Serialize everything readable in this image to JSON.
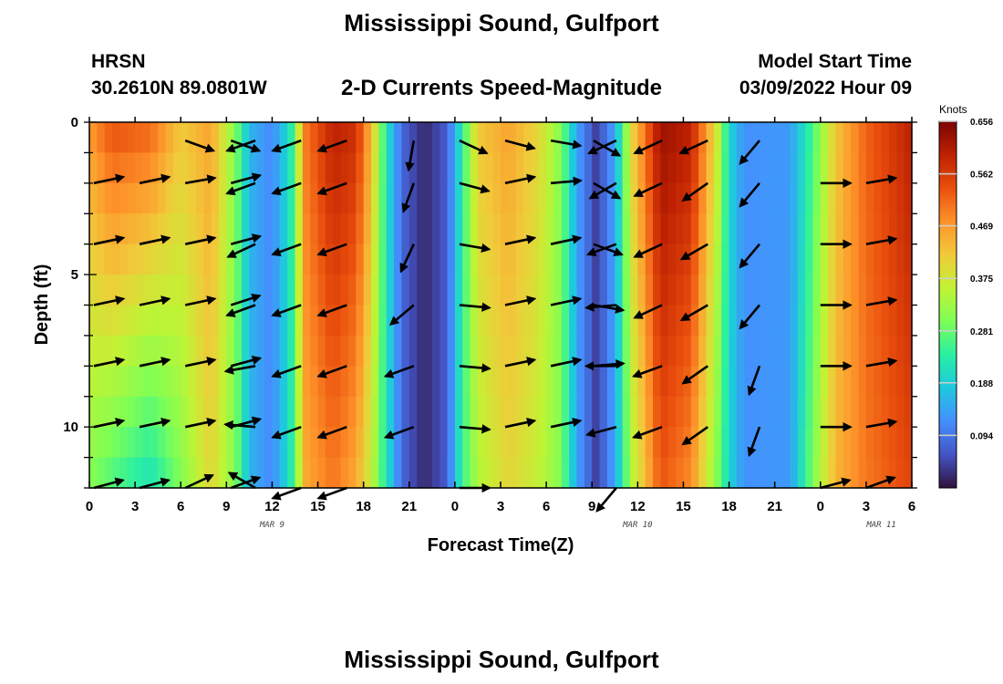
{
  "header": {
    "title": "Mississippi Sound, Gulfport",
    "station": "HRSN",
    "coords": "30.2610N  89.0801W",
    "subtitle": "2-D Currents Speed-Magnitude",
    "model_start_label": "Model Start Time",
    "model_start_value": "03/09/2022 Hour 09"
  },
  "footer": {
    "title": "Mississippi Sound, Gulfport"
  },
  "colors": {
    "scale": [
      "#30123b",
      "#4454c4",
      "#4490fe",
      "#1fc8de",
      "#29efa2",
      "#7dff56",
      "#c1f334",
      "#f1ca3a",
      "#fe922a",
      "#ea4f0d",
      "#be2102",
      "#7a0403"
    ]
  },
  "chart_data": {
    "type": "heatmap",
    "title": "2-D Currents Speed-Magnitude",
    "xlabel": "Forecast Time(Z)",
    "ylabel": "Depth (ft)",
    "x_range_hours": [
      0,
      54
    ],
    "y_range_ft": [
      0,
      12
    ],
    "xticks": [
      "0",
      "3",
      "6",
      "9",
      "12",
      "15",
      "18",
      "21",
      "0",
      "3",
      "6",
      "9",
      "12",
      "15",
      "18",
      "21",
      "0",
      "3",
      "6"
    ],
    "yticks": [
      "0",
      "5",
      "10"
    ],
    "ytick_values": [
      0,
      5,
      10
    ],
    "date_labels": [
      {
        "label": "MAR 9",
        "hour": 12
      },
      {
        "label": "MAR 10",
        "hour": 36
      },
      {
        "label": "MAR 11",
        "hour": 52
      }
    ],
    "colorbar": {
      "title": "Knots",
      "min": 0,
      "max": 0.656,
      "ticks": [
        "0.656",
        "0.562",
        "0.469",
        "0.375",
        "0.281",
        "0.188",
        "0.094"
      ],
      "tick_values": [
        0.656,
        0.562,
        0.469,
        0.375,
        0.281,
        0.188,
        0.094
      ]
    },
    "speed_keyframes": [
      {
        "hour": 0,
        "surface": 0.47,
        "bottom": 0.3
      },
      {
        "hour": 1.5,
        "surface": 0.54,
        "bottom": 0.26
      },
      {
        "hour": 4,
        "surface": 0.52,
        "bottom": 0.21
      },
      {
        "hour": 6,
        "surface": 0.42,
        "bottom": 0.3
      },
      {
        "hour": 8,
        "surface": 0.46,
        "bottom": 0.4
      },
      {
        "hour": 9.6,
        "surface": 0.3,
        "bottom": 0.3
      },
      {
        "hour": 10.5,
        "surface": 0.16,
        "bottom": 0.16
      },
      {
        "hour": 12,
        "surface": 0.11,
        "bottom": 0.11
      },
      {
        "hour": 13.2,
        "surface": 0.22,
        "bottom": 0.22
      },
      {
        "hour": 14.2,
        "surface": 0.5,
        "bottom": 0.45
      },
      {
        "hour": 16,
        "surface": 0.6,
        "bottom": 0.5
      },
      {
        "hour": 17.5,
        "surface": 0.58,
        "bottom": 0.45
      },
      {
        "hour": 18.5,
        "surface": 0.44,
        "bottom": 0.36
      },
      {
        "hour": 19.5,
        "surface": 0.22,
        "bottom": 0.22
      },
      {
        "hour": 20.5,
        "surface": 0.08,
        "bottom": 0.08
      },
      {
        "hour": 22,
        "surface": 0.02,
        "bottom": 0.02
      },
      {
        "hour": 23.5,
        "surface": 0.07,
        "bottom": 0.07
      },
      {
        "hour": 24.4,
        "surface": 0.22,
        "bottom": 0.24
      },
      {
        "hour": 25.5,
        "surface": 0.42,
        "bottom": 0.34
      },
      {
        "hour": 27.5,
        "surface": 0.46,
        "bottom": 0.4
      },
      {
        "hour": 29.5,
        "surface": 0.4,
        "bottom": 0.36
      },
      {
        "hour": 31,
        "surface": 0.3,
        "bottom": 0.3
      },
      {
        "hour": 32,
        "surface": 0.14,
        "bottom": 0.14
      },
      {
        "hour": 33.3,
        "surface": 0.04,
        "bottom": 0.04
      },
      {
        "hour": 34.5,
        "surface": 0.14,
        "bottom": 0.14
      },
      {
        "hour": 35.6,
        "surface": 0.4,
        "bottom": 0.34
      },
      {
        "hour": 37.5,
        "surface": 0.63,
        "bottom": 0.53
      },
      {
        "hour": 39.5,
        "surface": 0.6,
        "bottom": 0.48
      },
      {
        "hour": 41.2,
        "surface": 0.38,
        "bottom": 0.3
      },
      {
        "hour": 42,
        "surface": 0.2,
        "bottom": 0.2
      },
      {
        "hour": 43,
        "surface": 0.12,
        "bottom": 0.12
      },
      {
        "hour": 46,
        "surface": 0.13,
        "bottom": 0.13
      },
      {
        "hour": 47.5,
        "surface": 0.26,
        "bottom": 0.3
      },
      {
        "hour": 49,
        "surface": 0.42,
        "bottom": 0.44
      },
      {
        "hour": 51,
        "surface": 0.52,
        "bottom": 0.5
      },
      {
        "hour": 54,
        "surface": 0.6,
        "bottom": 0.55
      }
    ],
    "vector_columns": [
      {
        "hour": 0.3,
        "angles": [
          null,
          12,
          12,
          12,
          12,
          12,
          15
        ]
      },
      {
        "hour": 3.3,
        "angles": [
          null,
          12,
          12,
          12,
          12,
          12,
          15
        ]
      },
      {
        "hour": 6.3,
        "angles": [
          -20,
          10,
          12,
          12,
          12,
          12,
          25
        ]
      },
      {
        "hour": 9.3,
        "angles": [
          -20,
          15,
          15,
          18,
          15,
          15,
          20
        ]
      },
      {
        "hour": 10.9,
        "angles": [
          200,
          200,
          205,
          200,
          190,
          175,
          150
        ]
      },
      {
        "hour": 13.9,
        "angles": [
          200,
          200,
          200,
          200,
          200,
          200,
          200
        ]
      },
      {
        "hour": 16.9,
        "angles": [
          200,
          200,
          200,
          200,
          200,
          200,
          200
        ]
      },
      {
        "hour": 21.3,
        "angles": [
          -100,
          -110,
          -115,
          -140,
          -160,
          -160,
          null
        ]
      },
      {
        "hour": 24.3,
        "angles": [
          -25,
          -15,
          -10,
          -5,
          -5,
          -5,
          0
        ]
      },
      {
        "hour": 27.3,
        "angles": [
          -15,
          12,
          12,
          12,
          12,
          12,
          null
        ]
      },
      {
        "hour": 30.3,
        "angles": [
          -10,
          5,
          12,
          12,
          12,
          12,
          null
        ]
      },
      {
        "hour": 33.1,
        "angles": [
          -30,
          -30,
          -20,
          -10,
          5,
          null,
          null
        ]
      },
      {
        "hour": 34.6,
        "angles": [
          205,
          210,
          200,
          185,
          180,
          195,
          230
        ]
      },
      {
        "hour": 37.6,
        "angles": [
          205,
          205,
          205,
          205,
          200,
          200,
          null
        ]
      },
      {
        "hour": 40.6,
        "angles": [
          205,
          215,
          210,
          210,
          215,
          215,
          null
        ]
      },
      {
        "hour": 44.0,
        "angles": [
          230,
          230,
          230,
          230,
          250,
          250,
          null
        ]
      },
      {
        "hour": 48.0,
        "angles": [
          null,
          0,
          0,
          0,
          0,
          0,
          15
        ]
      },
      {
        "hour": 51.0,
        "angles": [
          null,
          10,
          10,
          10,
          10,
          10,
          20
        ]
      }
    ],
    "vector_depths_ft": [
      0.6,
      2,
      4,
      6,
      8,
      10,
      12
    ]
  }
}
